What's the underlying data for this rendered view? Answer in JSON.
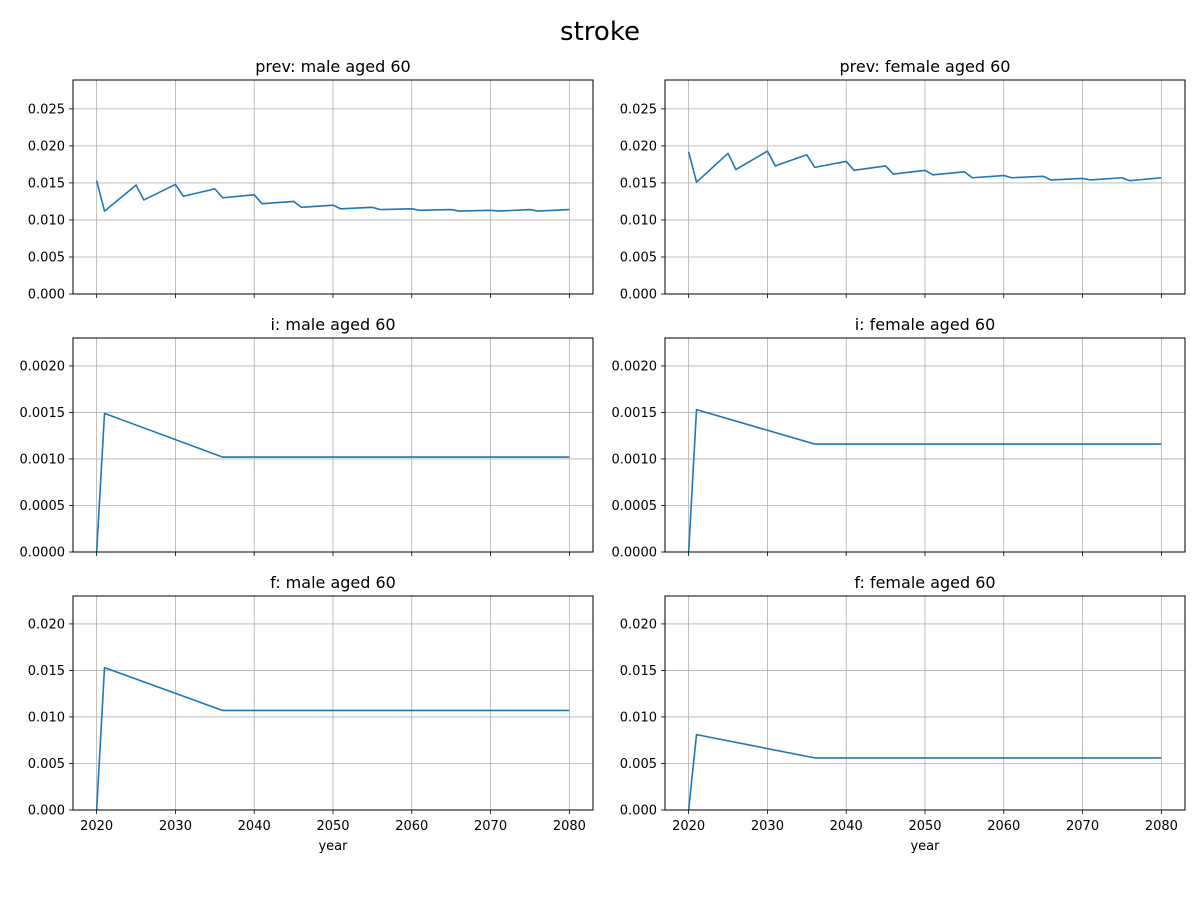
{
  "figure": {
    "title": "stroke"
  },
  "chart_data": [
    {
      "type": "line",
      "title": "prev: male aged 60",
      "xlabel": "",
      "ylabel": "",
      "xlim": [
        2017,
        2083
      ],
      "ylim": [
        0,
        0.0289
      ],
      "xticks": [
        2020,
        2030,
        2040,
        2050,
        2060,
        2070,
        2080
      ],
      "xticklabels": [],
      "yticks": [
        0,
        0.005,
        0.01,
        0.015,
        0.02,
        0.025
      ],
      "yticklabels": [
        "0.000",
        "0.005",
        "0.010",
        "0.015",
        "0.020",
        "0.025"
      ],
      "grid": true,
      "color": "#1f77b4",
      "x": [
        2020,
        2021,
        2025,
        2026,
        2030,
        2031,
        2035,
        2036,
        2040,
        2041,
        2045,
        2046,
        2050,
        2051,
        2055,
        2056,
        2060,
        2061,
        2065,
        2066,
        2070,
        2071,
        2075,
        2076,
        2080
      ],
      "y": [
        0.0153,
        0.0112,
        0.0147,
        0.0127,
        0.0148,
        0.0132,
        0.0142,
        0.013,
        0.0134,
        0.0122,
        0.0125,
        0.0117,
        0.012,
        0.0115,
        0.0117,
        0.0114,
        0.0115,
        0.0113,
        0.0114,
        0.0112,
        0.0113,
        0.0112,
        0.0114,
        0.0112,
        0.0114
      ]
    },
    {
      "type": "line",
      "title": "prev: female aged 60",
      "xlabel": "",
      "ylabel": "",
      "xlim": [
        2017,
        2083
      ],
      "ylim": [
        0,
        0.0289
      ],
      "xticks": [
        2020,
        2030,
        2040,
        2050,
        2060,
        2070,
        2080
      ],
      "xticklabels": [],
      "yticks": [
        0,
        0.005,
        0.01,
        0.015,
        0.02,
        0.025
      ],
      "yticklabels": [
        "0.000",
        "0.005",
        "0.010",
        "0.015",
        "0.020",
        "0.025"
      ],
      "grid": true,
      "color": "#1f77b4",
      "x": [
        2020,
        2021,
        2025,
        2026,
        2030,
        2031,
        2035,
        2036,
        2040,
        2041,
        2045,
        2046,
        2050,
        2051,
        2055,
        2056,
        2060,
        2061,
        2065,
        2066,
        2070,
        2071,
        2075,
        2076,
        2080
      ],
      "y": [
        0.0192,
        0.0151,
        0.019,
        0.0168,
        0.0193,
        0.0173,
        0.0188,
        0.0171,
        0.0179,
        0.0167,
        0.0173,
        0.0162,
        0.0167,
        0.0161,
        0.0165,
        0.0157,
        0.016,
        0.0157,
        0.0159,
        0.0154,
        0.0156,
        0.0154,
        0.0157,
        0.0153,
        0.0157
      ]
    },
    {
      "type": "line",
      "title": "i: male aged 60",
      "xlabel": "",
      "ylabel": "",
      "xlim": [
        2017,
        2083
      ],
      "ylim": [
        0,
        0.0023
      ],
      "xticks": [
        2020,
        2030,
        2040,
        2050,
        2060,
        2070,
        2080
      ],
      "xticklabels": [],
      "yticks": [
        0,
        0.0005,
        0.001,
        0.0015,
        0.002
      ],
      "yticklabels": [
        "0.0000",
        "0.0005",
        "0.0010",
        "0.0015",
        "0.0020"
      ],
      "grid": true,
      "color": "#1f77b4",
      "x": [
        2020,
        2021,
        2036,
        2080
      ],
      "y": [
        0,
        0.00149,
        0.00102,
        0.00102
      ]
    },
    {
      "type": "line",
      "title": "i: female aged 60",
      "xlabel": "",
      "ylabel": "",
      "xlim": [
        2017,
        2083
      ],
      "ylim": [
        0,
        0.0023
      ],
      "xticks": [
        2020,
        2030,
        2040,
        2050,
        2060,
        2070,
        2080
      ],
      "xticklabels": [],
      "yticks": [
        0,
        0.0005,
        0.001,
        0.0015,
        0.002
      ],
      "yticklabels": [
        "0.0000",
        "0.0005",
        "0.0010",
        "0.0015",
        "0.0020"
      ],
      "grid": true,
      "color": "#1f77b4",
      "x": [
        2020,
        2021,
        2036,
        2080
      ],
      "y": [
        0,
        0.00153,
        0.00116,
        0.00116
      ]
    },
    {
      "type": "line",
      "title": "f: male aged 60",
      "xlabel": "year",
      "ylabel": "",
      "xlim": [
        2017,
        2083
      ],
      "ylim": [
        0,
        0.023
      ],
      "xticks": [
        2020,
        2030,
        2040,
        2050,
        2060,
        2070,
        2080
      ],
      "xticklabels": [
        "2020",
        "2030",
        "2040",
        "2050",
        "2060",
        "2070",
        "2080"
      ],
      "yticks": [
        0,
        0.005,
        0.01,
        0.015,
        0.02
      ],
      "yticklabels": [
        "0.000",
        "0.005",
        "0.010",
        "0.015",
        "0.020"
      ],
      "grid": true,
      "color": "#1f77b4",
      "x": [
        2020,
        2021,
        2036,
        2080
      ],
      "y": [
        0,
        0.0153,
        0.0107,
        0.0107
      ]
    },
    {
      "type": "line",
      "title": "f: female aged 60",
      "xlabel": "year",
      "ylabel": "",
      "xlim": [
        2017,
        2083
      ],
      "ylim": [
        0,
        0.023
      ],
      "xticks": [
        2020,
        2030,
        2040,
        2050,
        2060,
        2070,
        2080
      ],
      "xticklabels": [
        "2020",
        "2030",
        "2040",
        "2050",
        "2060",
        "2070",
        "2080"
      ],
      "yticks": [
        0,
        0.005,
        0.01,
        0.015,
        0.02
      ],
      "yticklabels": [
        "0.000",
        "0.005",
        "0.010",
        "0.015",
        "0.020"
      ],
      "grid": true,
      "color": "#1f77b4",
      "x": [
        2020,
        2021,
        2036,
        2080
      ],
      "y": [
        0,
        0.0081,
        0.0056,
        0.0056
      ]
    }
  ]
}
